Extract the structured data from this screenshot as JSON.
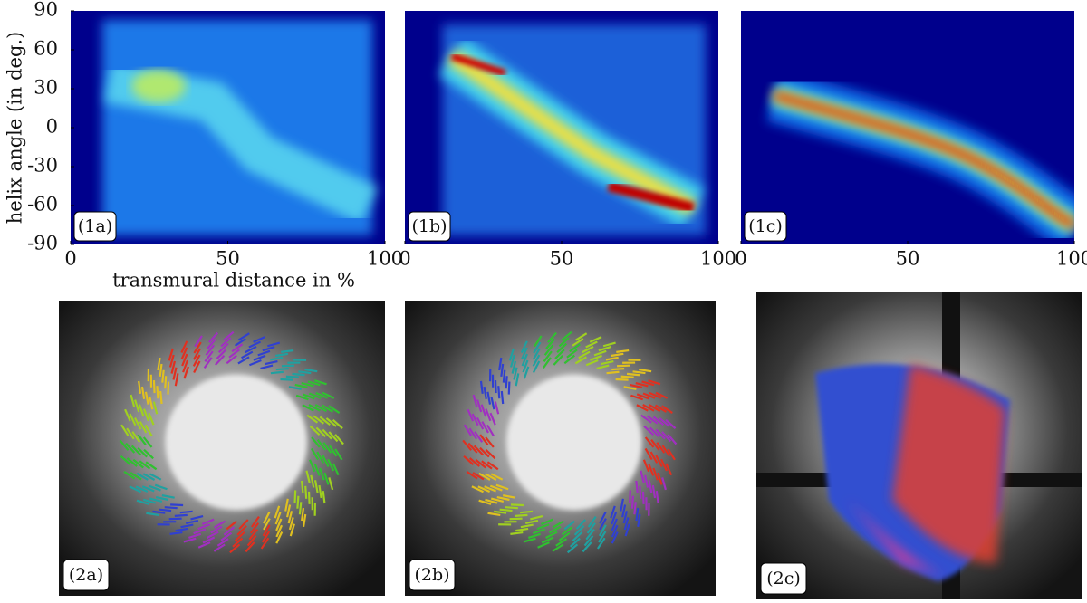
{
  "chart_data": [
    {
      "type": "heatmap",
      "panel_label": "(1a)",
      "y_label": "helix angle (in deg.)",
      "x_label": "transmural distance in %",
      "xlim": [
        0,
        100
      ],
      "ylim": [
        -90,
        90
      ],
      "xticks": [
        0,
        50,
        100
      ],
      "yticks": [
        90,
        60,
        30,
        0,
        -30,
        -60,
        -90
      ]
    },
    {
      "type": "heatmap",
      "panel_label": "(1b)",
      "xlim": [
        0,
        100
      ],
      "ylim": [
        -90,
        90
      ],
      "xticks": [
        0,
        50,
        100
      ]
    },
    {
      "type": "heatmap",
      "panel_label": "(1c)",
      "xlim": [
        0,
        100
      ],
      "ylim": [
        -90,
        90
      ],
      "xticks": [
        0,
        50,
        100
      ]
    }
  ],
  "images": [
    {
      "label": "(2a)"
    },
    {
      "label": "(2b)"
    },
    {
      "label": "(2c)"
    }
  ]
}
